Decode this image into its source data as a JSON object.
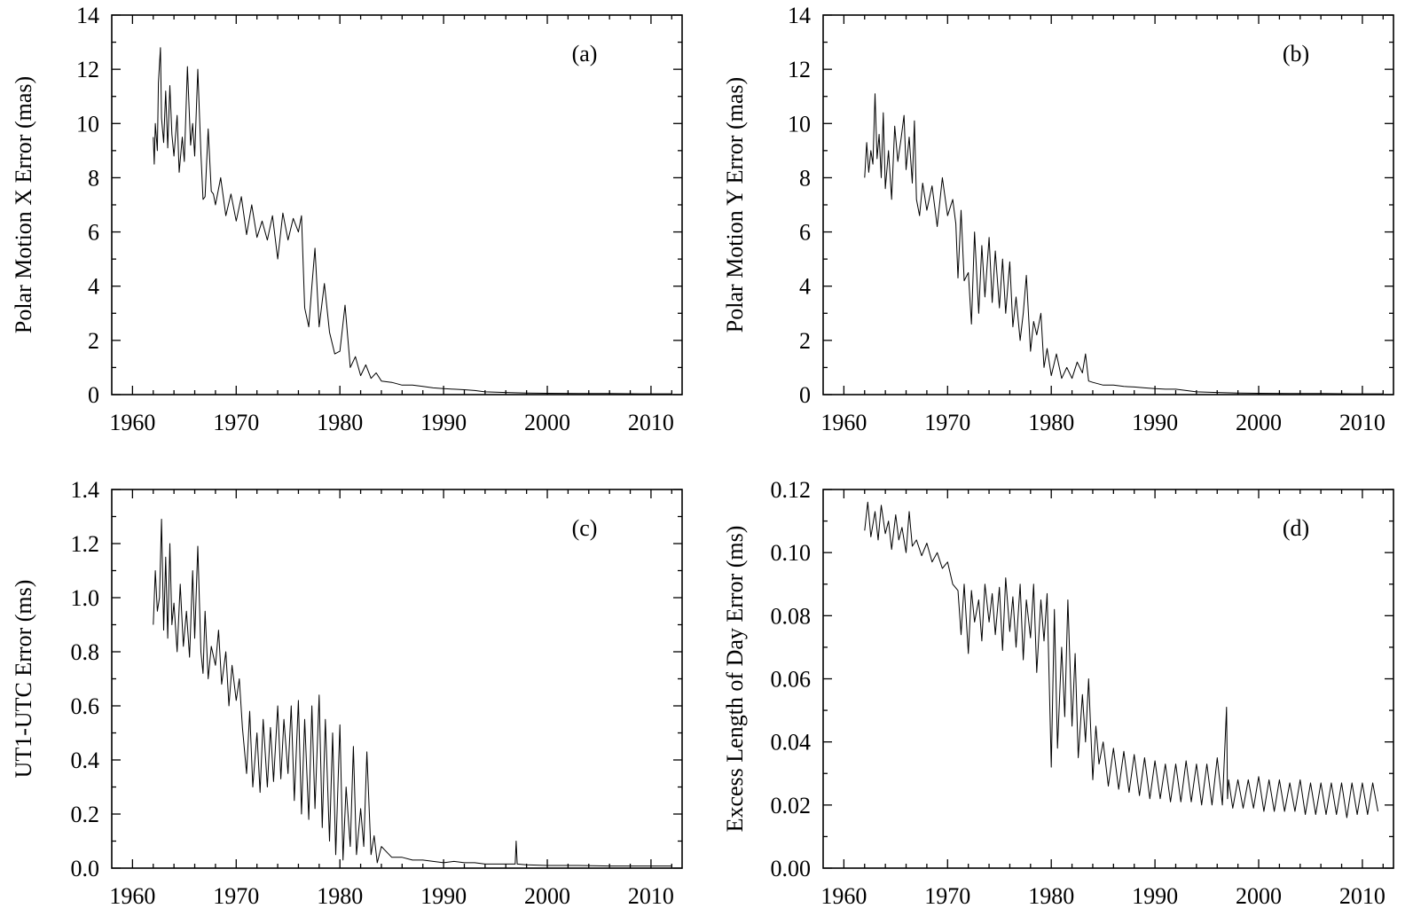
{
  "chart_data": [
    {
      "type": "line",
      "panel_label": "(a)",
      "xlabel": "",
      "ylabel": "Polar Motion X Error (mas)",
      "xlim": [
        1958,
        2013
      ],
      "ylim": [
        0,
        14
      ],
      "x_ticks": [
        1960,
        1970,
        1980,
        1990,
        2000,
        2010
      ],
      "x_tick_labels": [
        "1960",
        "1970",
        "1980",
        "1990",
        "2000",
        "2010"
      ],
      "y_ticks": [
        0,
        2,
        4,
        6,
        8,
        10,
        12,
        14
      ],
      "y_tick_labels": [
        "0",
        "2",
        "4",
        "6",
        "8",
        "10",
        "12",
        "14"
      ],
      "grid": false,
      "legend": "none",
      "line_color": "#000000",
      "series": [
        {
          "x": [
            1962.0,
            1962.1,
            1962.2,
            1962.4,
            1962.5,
            1962.7,
            1962.8,
            1963.0,
            1963.2,
            1963.4,
            1963.6,
            1963.8,
            1964.0,
            1964.3,
            1964.5,
            1964.8,
            1965.0,
            1965.3,
            1965.6,
            1965.8,
            1966.0,
            1966.3,
            1966.6,
            1966.8,
            1967.0,
            1967.3,
            1967.6,
            1967.8,
            1968.0,
            1968.5,
            1969.0,
            1969.5,
            1970.0,
            1970.5,
            1971.0,
            1971.5,
            1972.0,
            1972.5,
            1973.0,
            1973.5,
            1974.0,
            1974.5,
            1975.0,
            1975.5,
            1976.0,
            1976.3,
            1976.6,
            1977.0,
            1977.3,
            1977.6,
            1978.0,
            1978.5,
            1979.0,
            1979.5,
            1980.0,
            1980.5,
            1981.0,
            1981.5,
            1982.0,
            1982.5,
            1983.0,
            1983.5,
            1984.0,
            1985.0,
            1986.0,
            1987.0,
            1988.0,
            1989.0,
            1990.0,
            1991.0,
            1992.0,
            1993.0,
            1994.0,
            1996.0,
            1998.0,
            2000.0,
            2003.0,
            2006.0,
            2009.0,
            2012.0
          ],
          "y": [
            9.5,
            8.5,
            10.0,
            9.0,
            11.5,
            12.8,
            10.2,
            9.3,
            11.2,
            9.1,
            11.4,
            9.6,
            8.8,
            10.3,
            8.2,
            9.5,
            8.6,
            12.1,
            9.2,
            10.0,
            8.8,
            12.0,
            8.9,
            7.2,
            7.3,
            9.8,
            7.5,
            7.4,
            7.0,
            8.0,
            6.6,
            7.4,
            6.4,
            7.3,
            5.9,
            7.0,
            5.8,
            6.4,
            5.7,
            6.6,
            5.0,
            6.7,
            5.7,
            6.5,
            6.0,
            6.6,
            3.2,
            2.5,
            4.0,
            5.4,
            2.5,
            4.1,
            2.3,
            1.5,
            1.6,
            3.3,
            1.0,
            1.4,
            0.7,
            1.1,
            0.6,
            0.8,
            0.5,
            0.45,
            0.35,
            0.35,
            0.3,
            0.25,
            0.22,
            0.2,
            0.18,
            0.15,
            0.1,
            0.08,
            0.06,
            0.05,
            0.04,
            0.04,
            0.03,
            0.03
          ]
        }
      ]
    },
    {
      "type": "line",
      "panel_label": "(b)",
      "xlabel": "",
      "ylabel": "Polar Motion Y Error (mas)",
      "xlim": [
        1958,
        2013
      ],
      "ylim": [
        0,
        14
      ],
      "x_ticks": [
        1960,
        1970,
        1980,
        1990,
        2000,
        2010
      ],
      "x_tick_labels": [
        "1960",
        "1970",
        "1980",
        "1990",
        "2000",
        "2010"
      ],
      "y_ticks": [
        0,
        2,
        4,
        6,
        8,
        10,
        12,
        14
      ],
      "y_tick_labels": [
        "0",
        "2",
        "4",
        "6",
        "8",
        "10",
        "12",
        "14"
      ],
      "grid": false,
      "legend": "none",
      "line_color": "#000000",
      "series": [
        {
          "x": [
            1962.0,
            1962.2,
            1962.4,
            1962.6,
            1962.8,
            1963.0,
            1963.2,
            1963.4,
            1963.6,
            1963.8,
            1964.0,
            1964.3,
            1964.6,
            1964.9,
            1965.2,
            1965.5,
            1965.8,
            1966.0,
            1966.3,
            1966.6,
            1966.8,
            1967.0,
            1967.3,
            1967.6,
            1968.0,
            1968.5,
            1969.0,
            1969.5,
            1970.0,
            1970.5,
            1970.8,
            1971.0,
            1971.3,
            1971.6,
            1972.0,
            1972.3,
            1972.6,
            1973.0,
            1973.3,
            1973.6,
            1974.0,
            1974.3,
            1974.6,
            1975.0,
            1975.3,
            1975.6,
            1976.0,
            1976.3,
            1976.6,
            1977.0,
            1977.3,
            1977.6,
            1978.0,
            1978.3,
            1978.6,
            1979.0,
            1979.3,
            1979.6,
            1980.0,
            1980.5,
            1981.0,
            1981.5,
            1982.0,
            1982.5,
            1983.0,
            1983.3,
            1983.6,
            1984.0,
            1985.0,
            1986.0,
            1987.0,
            1988.0,
            1989.0,
            1990.0,
            1991.0,
            1992.0,
            1993.0,
            1994.0,
            1996.0,
            1998.0,
            2000.0,
            2003.0,
            2006.0,
            2009.0,
            2012.0
          ],
          "y": [
            8.0,
            9.3,
            8.2,
            9.0,
            8.5,
            11.1,
            8.7,
            9.6,
            8.0,
            10.4,
            7.6,
            9.0,
            7.2,
            9.9,
            8.6,
            9.4,
            10.3,
            8.3,
            9.5,
            7.8,
            10.1,
            7.2,
            6.6,
            7.8,
            6.8,
            7.7,
            6.2,
            8.0,
            6.6,
            7.2,
            6.3,
            4.3,
            6.8,
            4.2,
            4.5,
            2.6,
            6.0,
            3.0,
            5.5,
            3.6,
            5.8,
            3.4,
            5.3,
            3.2,
            5.0,
            3.0,
            4.9,
            2.5,
            3.6,
            2.0,
            3.0,
            4.4,
            1.6,
            2.7,
            2.2,
            3.0,
            1.0,
            1.7,
            0.7,
            1.5,
            0.6,
            1.0,
            0.6,
            1.2,
            0.8,
            1.5,
            0.5,
            0.45,
            0.35,
            0.35,
            0.3,
            0.28,
            0.25,
            0.22,
            0.2,
            0.2,
            0.15,
            0.1,
            0.08,
            0.06,
            0.05,
            0.04,
            0.04,
            0.03,
            0.03
          ]
        }
      ]
    },
    {
      "type": "line",
      "panel_label": "(c)",
      "xlabel": "",
      "ylabel": "UT1-UTC Error (ms)",
      "xlim": [
        1958,
        2013
      ],
      "ylim": [
        0,
        1.4
      ],
      "x_ticks": [
        1960,
        1970,
        1980,
        1990,
        2000,
        2010
      ],
      "x_tick_labels": [
        "1960",
        "1970",
        "1980",
        "1990",
        "2000",
        "2010"
      ],
      "y_ticks": [
        0,
        0.2,
        0.4,
        0.6,
        0.8,
        1.0,
        1.2,
        1.4
      ],
      "y_tick_labels": [
        "0.0",
        "0.2",
        "0.4",
        "0.6",
        "0.8",
        "1.0",
        "1.2",
        "1.4"
      ],
      "grid": false,
      "legend": "none",
      "line_color": "#000000",
      "series": [
        {
          "x": [
            1962.0,
            1962.2,
            1962.4,
            1962.6,
            1962.8,
            1963.0,
            1963.2,
            1963.4,
            1963.6,
            1963.8,
            1964.0,
            1964.3,
            1964.6,
            1964.9,
            1965.2,
            1965.5,
            1965.8,
            1966.0,
            1966.3,
            1966.6,
            1966.8,
            1967.0,
            1967.3,
            1967.6,
            1968.0,
            1968.3,
            1968.6,
            1969.0,
            1969.3,
            1969.6,
            1970.0,
            1970.3,
            1970.6,
            1971.0,
            1971.3,
            1971.6,
            1972.0,
            1972.3,
            1972.6,
            1973.0,
            1973.3,
            1973.6,
            1974.0,
            1974.3,
            1974.6,
            1975.0,
            1975.3,
            1975.6,
            1976.0,
            1976.3,
            1976.6,
            1977.0,
            1977.3,
            1977.6,
            1978.0,
            1978.3,
            1978.6,
            1979.0,
            1979.3,
            1979.6,
            1980.0,
            1980.3,
            1980.6,
            1981.0,
            1981.3,
            1981.6,
            1982.0,
            1982.3,
            1982.6,
            1983.0,
            1983.3,
            1983.6,
            1984.0,
            1984.5,
            1985.0,
            1986.0,
            1987.0,
            1988.0,
            1989.0,
            1990.0,
            1991.0,
            1992.0,
            1993.0,
            1994.0,
            1995.0,
            1996.0,
            1996.9,
            1997.0,
            1997.1,
            1998.0,
            2000.0,
            2003.0,
            2006.0,
            2009.0,
            2012.0
          ],
          "y": [
            0.9,
            1.1,
            0.95,
            1.0,
            1.29,
            0.88,
            1.15,
            0.85,
            1.2,
            0.9,
            0.98,
            0.8,
            1.05,
            0.82,
            0.95,
            0.78,
            1.1,
            0.85,
            1.19,
            0.8,
            0.72,
            0.95,
            0.7,
            0.82,
            0.75,
            0.88,
            0.68,
            0.8,
            0.6,
            0.75,
            0.62,
            0.7,
            0.52,
            0.35,
            0.58,
            0.3,
            0.5,
            0.28,
            0.55,
            0.3,
            0.52,
            0.32,
            0.6,
            0.33,
            0.55,
            0.35,
            0.6,
            0.25,
            0.62,
            0.2,
            0.55,
            0.18,
            0.6,
            0.22,
            0.64,
            0.15,
            0.55,
            0.1,
            0.5,
            0.05,
            0.53,
            0.03,
            0.3,
            0.08,
            0.45,
            0.05,
            0.22,
            0.08,
            0.43,
            0.05,
            0.12,
            0.02,
            0.08,
            0.06,
            0.04,
            0.04,
            0.03,
            0.03,
            0.025,
            0.02,
            0.025,
            0.02,
            0.02,
            0.015,
            0.015,
            0.015,
            0.015,
            0.1,
            0.015,
            0.012,
            0.01,
            0.01,
            0.008,
            0.008,
            0.008
          ]
        }
      ]
    },
    {
      "type": "line",
      "panel_label": "(d)",
      "xlabel": "",
      "ylabel": "Excess Length of Day Error (ms)",
      "xlim": [
        1958,
        2013
      ],
      "ylim": [
        0,
        0.12
      ],
      "x_ticks": [
        1960,
        1970,
        1980,
        1990,
        2000,
        2010
      ],
      "x_tick_labels": [
        "1960",
        "1970",
        "1980",
        "1990",
        "2000",
        "2010"
      ],
      "y_ticks": [
        0,
        0.02,
        0.04,
        0.06,
        0.08,
        0.1,
        0.12
      ],
      "y_tick_labels": [
        "0.00",
        "0.02",
        "0.04",
        "0.06",
        "0.08",
        "0.10",
        "0.12"
      ],
      "grid": false,
      "legend": "none",
      "line_color": "#000000",
      "series": [
        {
          "x": [
            1962.0,
            1962.3,
            1962.6,
            1963.0,
            1963.3,
            1963.6,
            1964.0,
            1964.3,
            1964.6,
            1965.0,
            1965.3,
            1965.6,
            1966.0,
            1966.3,
            1966.6,
            1967.0,
            1967.5,
            1968.0,
            1968.5,
            1969.0,
            1969.5,
            1970.0,
            1970.5,
            1971.0,
            1971.3,
            1971.6,
            1972.0,
            1972.3,
            1972.6,
            1973.0,
            1973.3,
            1973.6,
            1974.0,
            1974.3,
            1974.6,
            1975.0,
            1975.3,
            1975.6,
            1976.0,
            1976.3,
            1976.6,
            1977.0,
            1977.3,
            1977.6,
            1978.0,
            1978.3,
            1978.6,
            1979.0,
            1979.3,
            1979.6,
            1980.0,
            1980.3,
            1980.6,
            1981.0,
            1981.3,
            1981.6,
            1982.0,
            1982.3,
            1982.6,
            1983.0,
            1983.3,
            1983.6,
            1984.0,
            1984.3,
            1984.6,
            1985.0,
            1985.5,
            1986.0,
            1986.5,
            1987.0,
            1987.5,
            1988.0,
            1988.5,
            1989.0,
            1989.5,
            1990.0,
            1990.5,
            1991.0,
            1991.5,
            1992.0,
            1992.5,
            1993.0,
            1993.5,
            1994.0,
            1994.5,
            1995.0,
            1995.5,
            1996.0,
            1996.5,
            1996.9,
            1997.0,
            1997.1,
            1997.5,
            1998.0,
            1998.5,
            1999.0,
            1999.5,
            2000.0,
            2000.5,
            2001.0,
            2001.5,
            2002.0,
            2002.5,
            2003.0,
            2003.5,
            2004.0,
            2004.5,
            2005.0,
            2005.5,
            2006.0,
            2006.5,
            2007.0,
            2007.5,
            2008.0,
            2008.5,
            2009.0,
            2009.5,
            2010.0,
            2010.5,
            2011.0,
            2011.5
          ],
          "y": [
            0.107,
            0.116,
            0.105,
            0.113,
            0.104,
            0.115,
            0.106,
            0.11,
            0.101,
            0.112,
            0.104,
            0.108,
            0.1,
            0.113,
            0.102,
            0.104,
            0.099,
            0.103,
            0.097,
            0.1,
            0.095,
            0.097,
            0.09,
            0.088,
            0.074,
            0.09,
            0.068,
            0.088,
            0.078,
            0.085,
            0.072,
            0.09,
            0.078,
            0.087,
            0.074,
            0.089,
            0.069,
            0.092,
            0.075,
            0.086,
            0.07,
            0.09,
            0.066,
            0.085,
            0.073,
            0.09,
            0.062,
            0.085,
            0.072,
            0.087,
            0.032,
            0.082,
            0.038,
            0.07,
            0.048,
            0.085,
            0.045,
            0.068,
            0.035,
            0.055,
            0.04,
            0.06,
            0.028,
            0.045,
            0.033,
            0.04,
            0.026,
            0.038,
            0.025,
            0.037,
            0.024,
            0.036,
            0.023,
            0.035,
            0.022,
            0.034,
            0.022,
            0.033,
            0.021,
            0.033,
            0.021,
            0.034,
            0.021,
            0.033,
            0.02,
            0.033,
            0.02,
            0.035,
            0.02,
            0.051,
            0.022,
            0.028,
            0.019,
            0.028,
            0.019,
            0.028,
            0.019,
            0.029,
            0.018,
            0.028,
            0.018,
            0.028,
            0.018,
            0.027,
            0.018,
            0.028,
            0.017,
            0.027,
            0.017,
            0.027,
            0.017,
            0.027,
            0.017,
            0.027,
            0.016,
            0.027,
            0.017,
            0.027,
            0.017,
            0.027,
            0.018
          ]
        }
      ]
    }
  ]
}
